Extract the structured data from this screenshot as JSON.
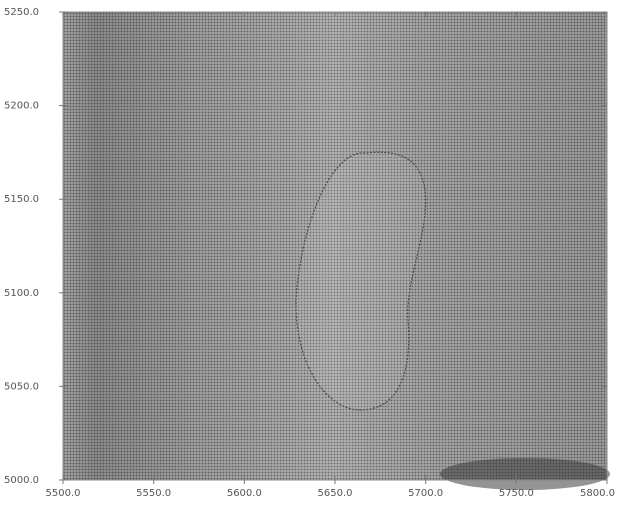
{
  "chart_data": {
    "type": "map",
    "xlim": [
      5500,
      5800
    ],
    "ylim": [
      5000,
      5250
    ],
    "xticks": [
      {
        "value": 5500,
        "label": "5500.0"
      },
      {
        "value": 5550,
        "label": "5550.0"
      },
      {
        "value": 5600,
        "label": "5600.0"
      },
      {
        "value": 5650,
        "label": "5650.0"
      },
      {
        "value": 5700,
        "label": "5700.0"
      },
      {
        "value": 5750,
        "label": "5750.0"
      },
      {
        "value": 5800,
        "label": "5800.0"
      }
    ],
    "yticks": [
      {
        "value": 5000,
        "label": "5000.0"
      },
      {
        "value": 5050,
        "label": "5050.0"
      },
      {
        "value": 5100,
        "label": "5100.0"
      },
      {
        "value": 5150,
        "label": "5150.0"
      },
      {
        "value": 5200,
        "label": "5200.0"
      },
      {
        "value": 5250,
        "label": "5250.0"
      }
    ]
  }
}
